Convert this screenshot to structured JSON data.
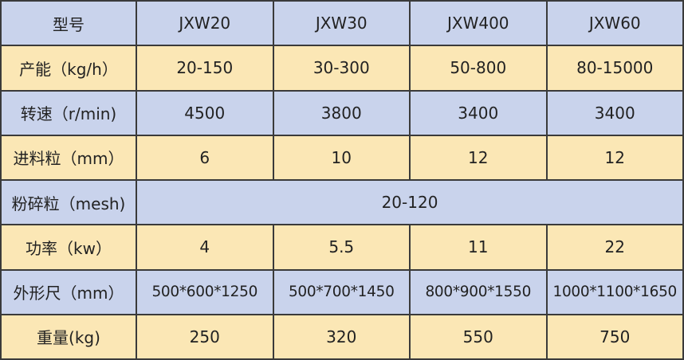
{
  "colors": {
    "blue_row": "#c9d3ec",
    "yellow_row": "#fbe7b5",
    "border": "#3a3a3a"
  },
  "table": {
    "header": [
      "型号",
      "JXW20",
      "JXW30",
      "JXW400",
      "JXW60"
    ],
    "rows": [
      {
        "label": "产能（kg/h）",
        "values": [
          "20-150",
          "30-300",
          "50-800",
          "80-15000"
        ]
      },
      {
        "label": "转速（r/min)",
        "values": [
          "4500",
          "3800",
          "3400",
          "3400"
        ]
      },
      {
        "label": "进料粒（mm）",
        "values": [
          "6",
          "10",
          "12",
          "12"
        ]
      },
      {
        "label": "粉碎粒（mesh)",
        "merged": "20-120"
      },
      {
        "label": "功率（kw）",
        "values": [
          "4",
          "5.5",
          "11",
          "22"
        ]
      },
      {
        "label": "外形尺（mm）",
        "values": [
          "500*600*1250",
          "500*700*1450",
          "800*900*1550",
          "1000*1100*1650"
        ]
      },
      {
        "label": "重量(kg)",
        "values": [
          "250",
          "320",
          "550",
          "750"
        ]
      }
    ]
  }
}
